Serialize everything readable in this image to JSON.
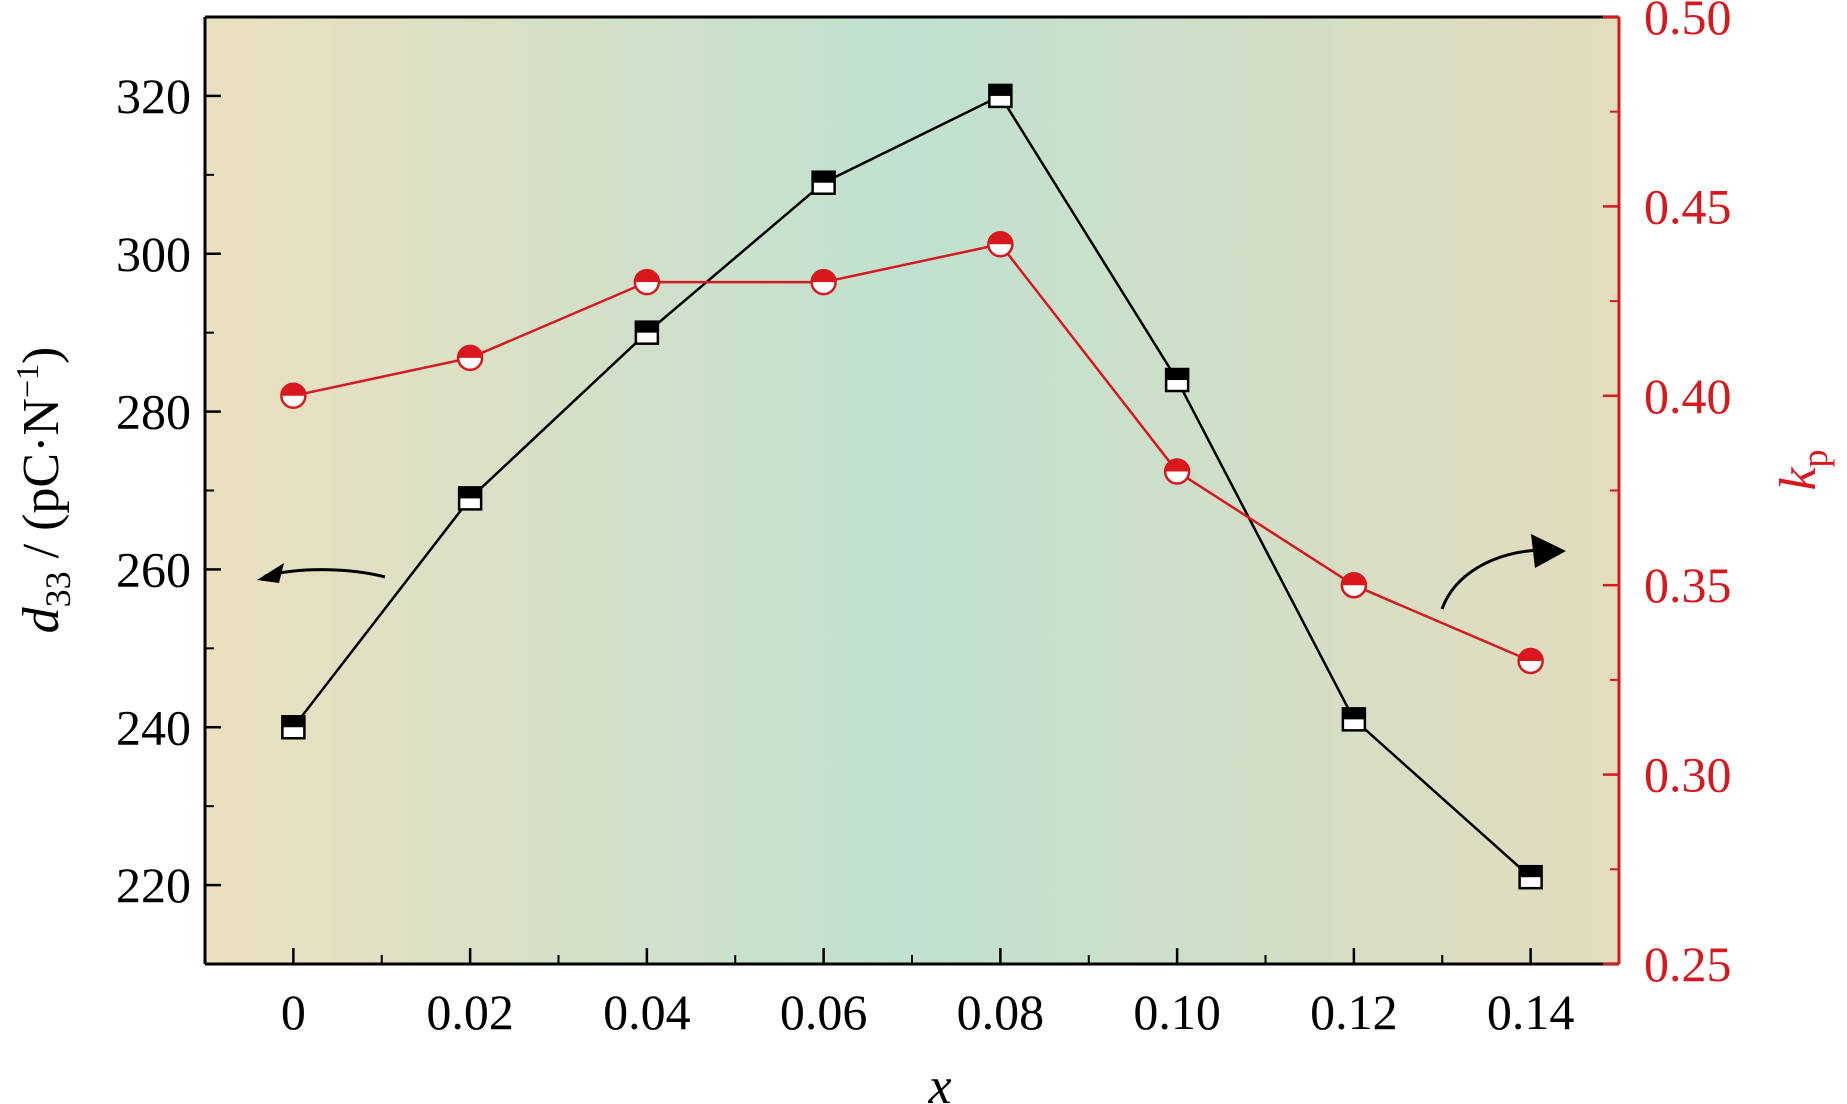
{
  "chart_data": {
    "type": "line",
    "x": [
      0,
      0.02,
      0.04,
      0.06,
      0.08,
      0.1,
      0.12,
      0.14
    ],
    "x_tick_labels": [
      "0",
      "0.02",
      "0.04",
      "0.06",
      "0.08",
      "0.10",
      "0.12",
      "0.14"
    ],
    "xlim": [
      -0.01,
      0.15
    ],
    "xlabel": "x",
    "left_axis": {
      "label_main": "d",
      "label_sub": "33",
      "label_rest": " / (pC·N",
      "label_sup": "−1",
      "label_close": ")",
      "ylim": [
        210,
        330
      ],
      "ticks": [
        220,
        240,
        260,
        280,
        300,
        320
      ],
      "tick_labels": [
        "220",
        "240",
        "260",
        "280",
        "300",
        "320"
      ],
      "color": "#000000"
    },
    "right_axis": {
      "label_main": "k",
      "label_sub": "p",
      "ylim": [
        0.25,
        0.5
      ],
      "ticks": [
        0.25,
        0.3,
        0.35,
        0.4,
        0.45,
        0.5
      ],
      "tick_labels": [
        "0.25",
        "0.30",
        "0.35",
        "0.40",
        "0.45",
        "0.50"
      ],
      "color": "#d7191f"
    },
    "series": [
      {
        "axis": "left",
        "marker": "half-filled-square",
        "color": "#000000",
        "values": [
          240,
          269,
          290,
          309,
          320,
          284,
          241,
          221
        ]
      },
      {
        "axis": "right",
        "marker": "half-filled-circle",
        "color": "#d7191f",
        "values": [
          0.4,
          0.41,
          0.43,
          0.43,
          0.44,
          0.38,
          0.35,
          0.33
        ]
      }
    ],
    "annotations": [
      {
        "type": "arrow",
        "direction": "left",
        "refers_to": "left axis"
      },
      {
        "type": "arrow",
        "direction": "right",
        "refers_to": "right axis"
      }
    ],
    "background": {
      "type": "gradient",
      "colors": [
        "#ebe0bf",
        "#c0e1d0",
        "#e4dcbd"
      ]
    },
    "grid": false,
    "legend": "none"
  }
}
